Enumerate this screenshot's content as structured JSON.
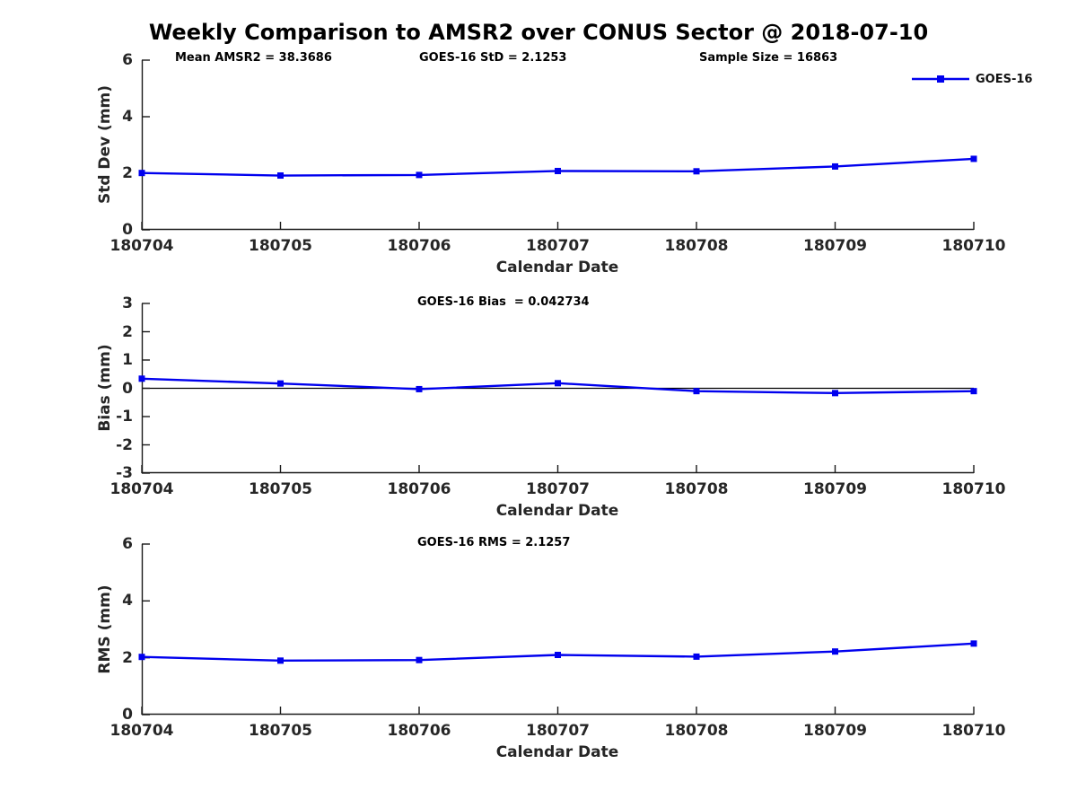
{
  "title": "Weekly Comparison to AMSR2 over CONUS Sector @ 2018-07-10",
  "colors": {
    "series_line": "#0000ee",
    "axis": "#1a1a1a",
    "tick_text": "#262626",
    "zero_line": "#000000"
  },
  "legend": {
    "label": "GOES-16"
  },
  "chart_data": [
    {
      "type": "line",
      "title": "",
      "annotations": [
        "Mean AMSR2 = 38.3686",
        "GOES-16 StD = 2.1253",
        "Sample Size = 16863"
      ],
      "categories": [
        "180704",
        "180705",
        "180706",
        "180707",
        "180708",
        "180709",
        "180710"
      ],
      "series": [
        {
          "name": "GOES-16",
          "color": "#0000ee",
          "marker": "square",
          "values": [
            2.01,
            1.92,
            1.94,
            2.08,
            2.07,
            2.24,
            2.51
          ]
        }
      ],
      "xlabel": "Calendar Date",
      "ylabel": "Std Dev (mm)",
      "ylim": [
        0,
        6
      ],
      "yticks": [
        0,
        2,
        4,
        6
      ],
      "grid": false,
      "zero_line": false,
      "legend_position": "upper-right"
    },
    {
      "type": "line",
      "title": "",
      "annotations": [
        "GOES-16 Bias  = 0.042734"
      ],
      "categories": [
        "180704",
        "180705",
        "180706",
        "180707",
        "180708",
        "180709",
        "180710"
      ],
      "series": [
        {
          "name": "GOES-16",
          "color": "#0000ee",
          "marker": "square",
          "values": [
            0.34,
            0.17,
            -0.03,
            0.18,
            -0.1,
            -0.17,
            -0.1
          ]
        }
      ],
      "xlabel": "Calendar Date",
      "ylabel": "Bias (mm)",
      "ylim": [
        -3,
        3
      ],
      "yticks": [
        -3,
        -2,
        -1,
        0,
        1,
        2,
        3
      ],
      "grid": false,
      "zero_line": true,
      "legend_position": "none"
    },
    {
      "type": "line",
      "title": "",
      "annotations": [
        "GOES-16 RMS = 2.1257"
      ],
      "categories": [
        "180704",
        "180705",
        "180706",
        "180707",
        "180708",
        "180709",
        "180710"
      ],
      "series": [
        {
          "name": "GOES-16",
          "color": "#0000ee",
          "marker": "square",
          "values": [
            2.03,
            1.9,
            1.92,
            2.1,
            2.04,
            2.22,
            2.5
          ]
        }
      ],
      "xlabel": "Calendar Date",
      "ylabel": "RMS (mm)",
      "ylim": [
        0,
        6
      ],
      "yticks": [
        0,
        2,
        4,
        6
      ],
      "grid": false,
      "zero_line": false,
      "legend_position": "none"
    }
  ]
}
